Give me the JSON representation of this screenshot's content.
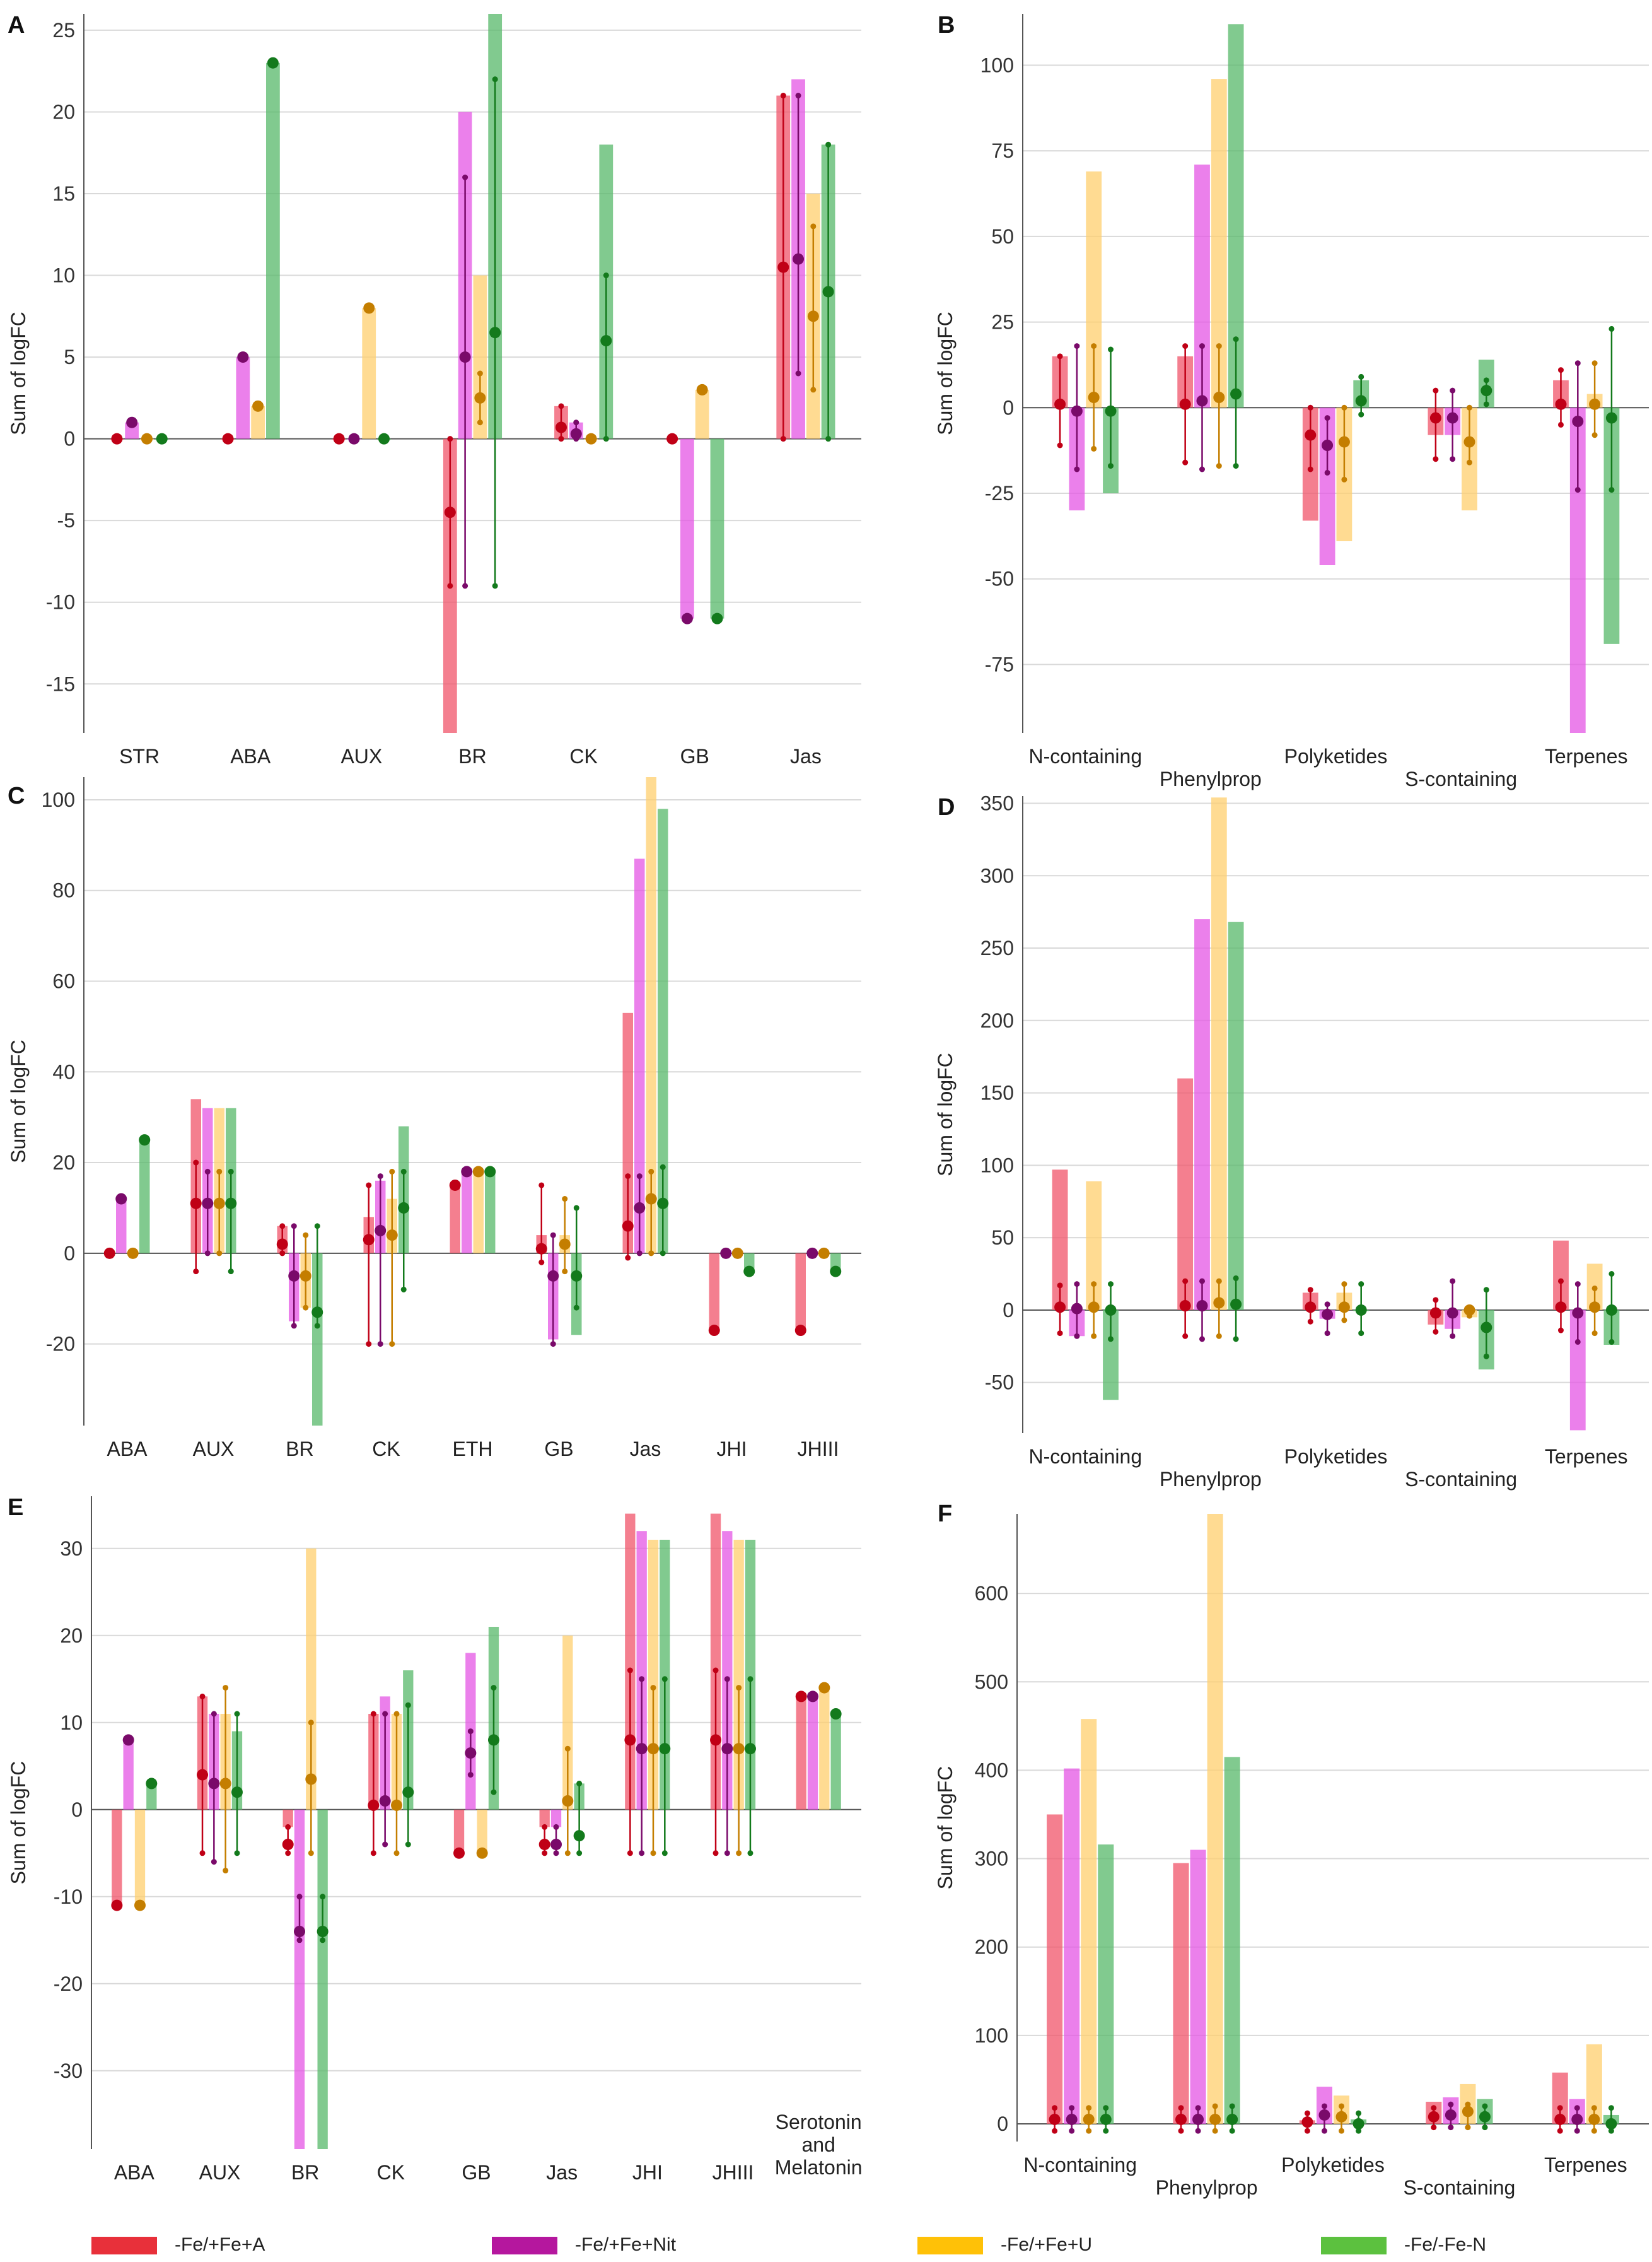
{
  "figure": {
    "legend": [
      {
        "label": "-Fe/+Fe+A",
        "color": "#e8303a"
      },
      {
        "label": "-Fe/+Fe+Nit",
        "color": "#b5179e"
      },
      {
        "label": "-Fe/+Fe+U",
        "color": "#ffc107"
      },
      {
        "label": "-Fe/-Fe-N",
        "color": "#5cc13f"
      }
    ]
  },
  "chart_data": [
    {
      "panel": "A",
      "type": "bar",
      "ylabel": "Sum of logFC",
      "ylim": [
        -18,
        26
      ],
      "yticks": [
        -15,
        -10,
        -5,
        0,
        5,
        10,
        15,
        20,
        25
      ],
      "categories": [
        "STR",
        "ABA",
        "AUX",
        "BR",
        "CK",
        "GB",
        "Jas"
      ],
      "series": [
        {
          "name": "-Fe/+Fe+A",
          "values": [
            0,
            0,
            0,
            -18,
            2,
            0,
            21
          ],
          "dots": [
            0,
            0,
            0,
            -4.5,
            0.7,
            0,
            10.5
          ],
          "err": [
            null,
            null,
            null,
            [
              -9,
              0
            ],
            [
              0,
              2
            ],
            null,
            [
              0,
              21
            ]
          ]
        },
        {
          "name": "-Fe/+Fe+Nit",
          "values": [
            1,
            5,
            0,
            20,
            1,
            -11,
            22
          ],
          "dots": [
            1,
            5,
            0,
            5,
            0.3,
            -11,
            11
          ],
          "err": [
            null,
            null,
            null,
            [
              -9,
              16
            ],
            [
              0,
              1
            ],
            null,
            [
              4,
              21
            ]
          ]
        },
        {
          "name": "-Fe/+Fe+U",
          "values": [
            0,
            2,
            8,
            10,
            0,
            3,
            15
          ],
          "dots": [
            0,
            2,
            8,
            2.5,
            0,
            3,
            7.5
          ],
          "err": [
            null,
            null,
            null,
            [
              1,
              4
            ],
            null,
            null,
            [
              3,
              13
            ]
          ]
        },
        {
          "name": "-Fe/-Fe-N",
          "values": [
            0,
            23,
            0,
            26,
            18,
            -11,
            18
          ],
          "dots": [
            0,
            23,
            0,
            6.5,
            6,
            -11,
            9
          ],
          "err": [
            null,
            null,
            null,
            [
              -9,
              22
            ],
            [
              0,
              10
            ],
            null,
            [
              0,
              18
            ]
          ]
        }
      ]
    },
    {
      "panel": "B",
      "type": "bar",
      "ylabel": "Sum of logFC",
      "ylim": [
        -95,
        115
      ],
      "yticks": [
        -75,
        -50,
        -25,
        0,
        25,
        50,
        75,
        100
      ],
      "categories": [
        "N-containing",
        "Phenylprop",
        "Polyketides",
        "S-containing",
        "Terpenes"
      ],
      "series": [
        {
          "name": "-Fe/+Fe+A",
          "values": [
            15,
            15,
            -33,
            -8,
            8
          ],
          "dots": [
            1,
            1,
            -8,
            -3,
            1
          ],
          "err": [
            [
              -11,
              15
            ],
            [
              -16,
              18
            ],
            [
              -18,
              0
            ],
            [
              -15,
              5
            ],
            [
              -5,
              11
            ]
          ]
        },
        {
          "name": "-Fe/+Fe+Nit",
          "values": [
            -30,
            71,
            -46,
            -8,
            -95
          ],
          "dots": [
            -1,
            2,
            -11,
            -3,
            -4
          ],
          "err": [
            [
              -18,
              18
            ],
            [
              -18,
              18
            ],
            [
              -19,
              -3
            ],
            [
              -15,
              5
            ],
            [
              -24,
              13
            ]
          ]
        },
        {
          "name": "-Fe/+Fe+U",
          "values": [
            69,
            96,
            -39,
            -30,
            4
          ],
          "dots": [
            3,
            3,
            -10,
            -10,
            1
          ],
          "err": [
            [
              -12,
              18
            ],
            [
              -17,
              18
            ],
            [
              -21,
              0
            ],
            [
              -16,
              0
            ],
            [
              -8,
              13
            ]
          ]
        },
        {
          "name": "-Fe/-Fe-N",
          "values": [
            -25,
            112,
            8,
            14,
            -69
          ],
          "dots": [
            -1,
            4,
            2,
            5,
            -3
          ],
          "err": [
            [
              -17,
              17
            ],
            [
              -17,
              20
            ],
            [
              -2,
              9
            ],
            [
              1,
              8
            ],
            [
              -24,
              23
            ]
          ]
        }
      ]
    },
    {
      "panel": "C",
      "type": "bar",
      "ylabel": "Sum of logFC",
      "ylim": [
        -38,
        105
      ],
      "yticks": [
        -20,
        0,
        20,
        40,
        60,
        80,
        100
      ],
      "categories": [
        "ABA",
        "AUX",
        "BR",
        "CK",
        "ETH",
        "GB",
        "Jas",
        "JHI",
        "JHIII"
      ],
      "series": [
        {
          "name": "-Fe/+Fe+A",
          "values": [
            0,
            34,
            6,
            8,
            15,
            4,
            53,
            -17,
            -17
          ],
          "dots": [
            0,
            11,
            2,
            3,
            15,
            1,
            6,
            -17,
            -17
          ],
          "err": [
            null,
            [
              -4,
              20
            ],
            [
              0,
              6
            ],
            [
              -20,
              15
            ],
            null,
            [
              -2,
              15
            ],
            [
              -1,
              17
            ],
            null,
            null
          ]
        },
        {
          "name": "-Fe/+Fe+Nit",
          "values": [
            12,
            32,
            -15,
            16,
            18,
            -19,
            87,
            0,
            0
          ],
          "dots": [
            12,
            11,
            -5,
            5,
            18,
            -5,
            10,
            0,
            0
          ],
          "err": [
            null,
            [
              0,
              18
            ],
            [
              -16,
              6
            ],
            [
              -20,
              17
            ],
            null,
            [
              -20,
              4
            ],
            [
              0,
              17
            ],
            null,
            null
          ]
        },
        {
          "name": "-Fe/+Fe+U",
          "values": [
            0,
            32,
            -12,
            12,
            18,
            4,
            105,
            0,
            0
          ],
          "dots": [
            0,
            11,
            -5,
            4,
            18,
            2,
            12,
            0,
            0
          ],
          "err": [
            null,
            [
              0,
              18
            ],
            [
              -12,
              4
            ],
            [
              -20,
              18
            ],
            null,
            [
              -4,
              12
            ],
            [
              0,
              18
            ],
            null,
            null
          ]
        },
        {
          "name": "-Fe/-Fe-N",
          "values": [
            25,
            32,
            -38,
            28,
            18,
            -18,
            98,
            -4,
            -4
          ],
          "dots": [
            25,
            11,
            -13,
            10,
            18,
            -5,
            11,
            -4,
            -4
          ],
          "err": [
            null,
            [
              -4,
              18
            ],
            [
              -16,
              6
            ],
            [
              -8,
              18
            ],
            null,
            [
              -12,
              10
            ],
            [
              0,
              19
            ],
            null,
            null
          ]
        }
      ]
    },
    {
      "panel": "D",
      "type": "bar",
      "ylabel": "Sum of logFC",
      "ylim": [
        -85,
        355
      ],
      "yticks": [
        -50,
        0,
        50,
        100,
        150,
        200,
        250,
        300,
        350
      ],
      "categories": [
        "N-containing",
        "Phenylprop",
        "Polyketides",
        "S-containing",
        "Terpenes"
      ],
      "series": [
        {
          "name": "-Fe/+Fe+A",
          "values": [
            97,
            160,
            12,
            -10,
            48
          ],
          "dots": [
            2,
            3,
            2,
            -2,
            2
          ],
          "err": [
            [
              -16,
              17
            ],
            [
              -18,
              20
            ],
            [
              -8,
              14
            ],
            [
              -15,
              7
            ],
            [
              -14,
              20
            ]
          ]
        },
        {
          "name": "-Fe/+Fe+Nit",
          "values": [
            -18,
            270,
            -6,
            -13,
            -83
          ],
          "dots": [
            1,
            3,
            -3,
            -2,
            -2
          ],
          "err": [
            [
              -18,
              18
            ],
            [
              -20,
              20
            ],
            [
              -16,
              4
            ],
            [
              -18,
              20
            ],
            [
              -22,
              18
            ]
          ]
        },
        {
          "name": "-Fe/+Fe+U",
          "values": [
            89,
            354,
            12,
            -5,
            32
          ],
          "dots": [
            2,
            5,
            2,
            0,
            2
          ],
          "err": [
            [
              -18,
              18
            ],
            [
              -18,
              20
            ],
            [
              -7,
              18
            ],
            [
              -4,
              0
            ],
            [
              -16,
              15
            ]
          ]
        },
        {
          "name": "-Fe/-Fe-N",
          "values": [
            -62,
            268,
            0,
            -41,
            -24
          ],
          "dots": [
            0,
            4,
            0,
            -12,
            0
          ],
          "err": [
            [
              -20,
              18
            ],
            [
              -20,
              22
            ],
            [
              -16,
              18
            ],
            [
              -32,
              14
            ],
            [
              -22,
              25
            ]
          ]
        }
      ]
    },
    {
      "panel": "E",
      "type": "bar",
      "ylabel": "Sum of logFC",
      "ylim": [
        -39,
        36
      ],
      "yticks": [
        -30,
        -20,
        -10,
        0,
        10,
        20,
        30
      ],
      "categories": [
        "ABA",
        "AUX",
        "BR",
        "CK",
        "GB",
        "Jas",
        "JHI",
        "JHIII",
        "Serotonin and Melatonin"
      ],
      "series": [
        {
          "name": "-Fe/+Fe+A",
          "values": [
            -11,
            13,
            -2,
            11,
            -5,
            -2,
            34,
            34,
            13
          ],
          "dots": [
            -11,
            4,
            -4,
            0.5,
            -5,
            -4,
            8,
            8,
            13
          ],
          "err": [
            null,
            [
              -5,
              13
            ],
            [
              -5,
              -2
            ],
            [
              -5,
              11
            ],
            null,
            [
              -5,
              -2
            ],
            [
              -5,
              16
            ],
            [
              -5,
              16
            ],
            null
          ]
        },
        {
          "name": "-Fe/+Fe+Nit",
          "values": [
            8,
            11,
            -39,
            13,
            18,
            -2,
            32,
            32,
            13
          ],
          "dots": [
            8,
            3,
            -14,
            1,
            6.5,
            -4,
            7,
            7,
            13
          ],
          "err": [
            null,
            [
              -6,
              11
            ],
            [
              -15,
              -10
            ],
            [
              -4,
              11
            ],
            [
              4,
              9
            ],
            [
              -5,
              -2
            ],
            [
              -5,
              15
            ],
            [
              -5,
              15
            ],
            null
          ]
        },
        {
          "name": "-Fe/+Fe+U",
          "values": [
            -11,
            11,
            30,
            11,
            -5,
            20,
            31,
            31,
            14
          ],
          "dots": [
            -11,
            3,
            3.5,
            0.5,
            -5,
            1,
            7,
            7,
            14
          ],
          "err": [
            null,
            [
              -7,
              14
            ],
            [
              -5,
              10
            ],
            [
              -5,
              11
            ],
            null,
            [
              -5,
              7
            ],
            [
              -5,
              14
            ],
            [
              -5,
              14
            ],
            null
          ]
        },
        {
          "name": "-Fe/-Fe-N",
          "values": [
            3,
            9,
            -39,
            16,
            21,
            3,
            31,
            31,
            11
          ],
          "dots": [
            3,
            2,
            -14,
            2,
            8,
            -3,
            7,
            7,
            11
          ],
          "err": [
            null,
            [
              -5,
              11
            ],
            [
              -15,
              -10
            ],
            [
              -4,
              12
            ],
            [
              2,
              14
            ],
            [
              -5,
              3
            ],
            [
              -5,
              15
            ],
            [
              -5,
              15
            ],
            null
          ]
        }
      ]
    },
    {
      "panel": "F",
      "type": "bar",
      "ylabel": "Sum of logFC",
      "ylim": [
        -20,
        690
      ],
      "yticks": [
        0,
        100,
        200,
        300,
        400,
        500,
        600
      ],
      "categories": [
        "N-containing",
        "Phenylprop",
        "Polyketides",
        "S-containing",
        "Terpenes"
      ],
      "series": [
        {
          "name": "-Fe/+Fe+A",
          "values": [
            350,
            295,
            4,
            25,
            58
          ],
          "dots": [
            5,
            5,
            2,
            8,
            5
          ],
          "err": [
            [
              -8,
              18
            ],
            [
              -8,
              18
            ],
            [
              -8,
              12
            ],
            [
              -4,
              18
            ],
            [
              -8,
              18
            ]
          ]
        },
        {
          "name": "-Fe/+Fe+Nit",
          "values": [
            402,
            310,
            42,
            30,
            28
          ],
          "dots": [
            5,
            5,
            10,
            10,
            5
          ],
          "err": [
            [
              -8,
              18
            ],
            [
              -8,
              18
            ],
            [
              -8,
              20
            ],
            [
              -4,
              22
            ],
            [
              -8,
              18
            ]
          ]
        },
        {
          "name": "-Fe/+Fe+U",
          "values": [
            458,
            690,
            32,
            45,
            90
          ],
          "dots": [
            5,
            5,
            8,
            14,
            5
          ],
          "err": [
            [
              -8,
              18
            ],
            [
              -8,
              20
            ],
            [
              -8,
              20
            ],
            [
              -4,
              22
            ],
            [
              -8,
              18
            ]
          ]
        },
        {
          "name": "-Fe/-Fe-N",
          "values": [
            316,
            415,
            5,
            28,
            10
          ],
          "dots": [
            5,
            5,
            0,
            8,
            0
          ],
          "err": [
            [
              -8,
              18
            ],
            [
              -8,
              20
            ],
            [
              -8,
              12
            ],
            [
              -4,
              20
            ],
            [
              -8,
              18
            ]
          ]
        }
      ]
    }
  ]
}
